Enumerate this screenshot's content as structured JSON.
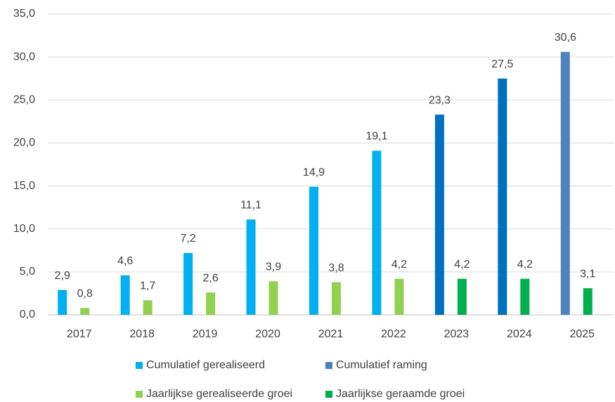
{
  "chart_data": {
    "type": "bar",
    "categories": [
      "2017",
      "2018",
      "2019",
      "2020",
      "2021",
      "2022",
      "2023",
      "2024",
      "2025"
    ],
    "series": [
      {
        "name": "Cumulatief gerealiseerd",
        "color": "#00b0f0",
        "values": [
          2.9,
          4.6,
          7.2,
          11.1,
          14.9,
          19.1,
          null,
          null,
          null
        ],
        "value_labels": [
          "2,9",
          "4,6",
          "7,2",
          "11,1",
          "14,9",
          "19,1",
          null,
          null,
          null
        ]
      },
      {
        "name": "Cumulatief raming",
        "color": "#4f81bd",
        "values": [
          null,
          null,
          null,
          null,
          null,
          null,
          23.3,
          27.5,
          30.6
        ],
        "value_labels": [
          null,
          null,
          null,
          null,
          null,
          null,
          "23,3",
          "27,5",
          "30,6"
        ],
        "colors": [
          null,
          null,
          null,
          null,
          null,
          null,
          "#0070c0",
          "#0070c0",
          "#4f81bd"
        ]
      },
      {
        "name": "Jaarlijkse gerealiseerde groei",
        "color": "#92d050",
        "values": [
          0.8,
          1.7,
          2.6,
          3.9,
          3.8,
          4.2,
          null,
          null,
          null
        ],
        "value_labels": [
          "0,8",
          "1,7",
          "2,6",
          "3,9",
          "3,8",
          "4,2",
          null,
          null,
          null
        ]
      },
      {
        "name": "Jaarlijkse geraamde groei",
        "color": "#00b050",
        "values": [
          null,
          null,
          null,
          null,
          null,
          null,
          4.2,
          4.2,
          3.1
        ],
        "value_labels": [
          null,
          null,
          null,
          null,
          null,
          null,
          "4,2",
          "4,2",
          "3,1"
        ]
      }
    ],
    "ylim": [
      0,
      35
    ],
    "yticks": [
      {
        "value": 0,
        "label": "0,0"
      },
      {
        "value": 5,
        "label": "5,0"
      },
      {
        "value": 10,
        "label": "10,0"
      },
      {
        "value": 15,
        "label": "15,0"
      },
      {
        "value": 20,
        "label": "20,0"
      },
      {
        "value": 25,
        "label": "25,0"
      },
      {
        "value": 30,
        "label": "30,0"
      },
      {
        "value": 35,
        "label": "35,0"
      }
    ],
    "grid": true,
    "legend": "bottom"
  }
}
